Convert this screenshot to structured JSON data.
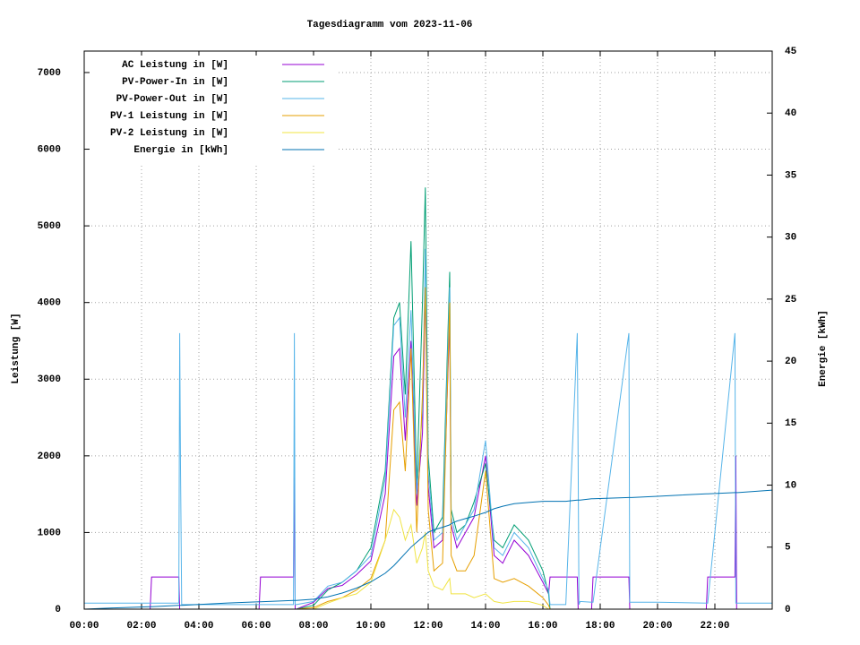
{
  "chart_data": {
    "type": "line",
    "title": "Tagesdiagramm vom 2023-11-06",
    "y_label": "Leistung [W]",
    "y2_label": "Energie [kWh]",
    "xlim": [
      0,
      24
    ],
    "xticks": [
      {
        "value": 0,
        "label": "00:00"
      },
      {
        "value": 2,
        "label": "02:00"
      },
      {
        "value": 4,
        "label": "04:00"
      },
      {
        "value": 6,
        "label": "06:00"
      },
      {
        "value": 8,
        "label": "08:00"
      },
      {
        "value": 10,
        "label": "10:00"
      },
      {
        "value": 12,
        "label": "12:00"
      },
      {
        "value": 14,
        "label": "14:00"
      },
      {
        "value": 16,
        "label": "16:00"
      },
      {
        "value": 18,
        "label": "18:00"
      },
      {
        "value": 20,
        "label": "20:00"
      },
      {
        "value": 22,
        "label": "22:00"
      }
    ],
    "ylim": [
      0,
      7280
    ],
    "yticks": [
      0,
      1000,
      2000,
      3000,
      4000,
      5000,
      6000,
      7000
    ],
    "y2lim": [
      0,
      45
    ],
    "y2ticks": [
      0,
      5,
      10,
      15,
      20,
      25,
      30,
      35,
      40,
      45
    ],
    "grid": true,
    "legend": "top left",
    "x": [
      0,
      1,
      2.3,
      2.35,
      3.3,
      3.33,
      3.36,
      3.4,
      5,
      6.1,
      6.15,
      7.3,
      7.33,
      7.36,
      7.4,
      8,
      8.5,
      9,
      9.5,
      10,
      10.5,
      10.8,
      11,
      11.2,
      11.4,
      11.6,
      11.8,
      11.9,
      12.0,
      12.2,
      12.5,
      12.75,
      12.8,
      13,
      13.3,
      13.6,
      14,
      14.3,
      14.6,
      15,
      15.5,
      16,
      16.2,
      16.25,
      16.8,
      17.2,
      17.23,
      17.26,
      17.3,
      17.7,
      17.75,
      19.0,
      19.03,
      19.06,
      19.1,
      20,
      21.7,
      21.75,
      22.7,
      22.73,
      22.76,
      22.8,
      24
    ],
    "series": [
      {
        "name": "AC Leistung in [W]",
        "color": "#9400d3",
        "values": [
          0,
          0,
          0,
          420,
          420,
          0,
          0,
          0,
          0,
          0,
          420,
          420,
          2000,
          0,
          0,
          90,
          270,
          310,
          450,
          630,
          1500,
          3300,
          3400,
          2200,
          3500,
          1350,
          2300,
          4200,
          1600,
          800,
          900,
          3800,
          1100,
          800,
          1000,
          1200,
          2000,
          700,
          600,
          900,
          700,
          350,
          200,
          420,
          420,
          420,
          0,
          0,
          0,
          0,
          420,
          420,
          0,
          0,
          0,
          0,
          0,
          420,
          420,
          2000,
          0,
          0,
          0
        ]
      },
      {
        "name": "PV-Power-In in [W]",
        "color": "#009e73",
        "values": [
          0,
          0,
          0,
          0,
          0,
          0,
          0,
          0,
          0,
          0,
          0,
          0,
          0,
          0,
          0,
          50,
          250,
          350,
          500,
          800,
          1800,
          3800,
          4000,
          2800,
          4800,
          1600,
          4000,
          5500,
          2000,
          1000,
          1200,
          4400,
          1300,
          1000,
          1100,
          1400,
          1900,
          900,
          800,
          1100,
          900,
          500,
          200,
          0,
          0,
          0,
          0,
          0,
          0,
          0,
          0,
          0,
          0,
          0,
          0,
          0,
          0,
          0,
          0,
          0,
          0,
          0,
          0
        ]
      },
      {
        "name": "PV-Power-Out in [W]",
        "color": "#56b4e9",
        "values": [
          80,
          80,
          80,
          80,
          80,
          3600,
          1850,
          60,
          60,
          60,
          60,
          60,
          3600,
          60,
          60,
          100,
          300,
          350,
          500,
          700,
          1700,
          3700,
          3800,
          2500,
          3900,
          1500,
          2600,
          4700,
          1800,
          900,
          1000,
          4200,
          1200,
          900,
          1100,
          1300,
          2200,
          800,
          700,
          1000,
          800,
          400,
          250,
          60,
          60,
          3600,
          1850,
          60,
          100,
          90,
          90,
          3600,
          90,
          90,
          90,
          90,
          80,
          80,
          3600,
          80,
          80,
          80,
          80
        ]
      },
      {
        "name": "PV-1 Leistung in [W]",
        "color": "#e69f00",
        "values": [
          0,
          0,
          0,
          0,
          0,
          0,
          0,
          0,
          0,
          0,
          0,
          0,
          0,
          0,
          0,
          20,
          100,
          150,
          250,
          400,
          900,
          2600,
          2700,
          1800,
          3400,
          1000,
          2800,
          4200,
          1300,
          500,
          600,
          4000,
          700,
          500,
          500,
          700,
          1800,
          400,
          350,
          400,
          300,
          150,
          50,
          0,
          0,
          0,
          0,
          0,
          0,
          0,
          0,
          0,
          0,
          0,
          0,
          0,
          0,
          0,
          0,
          0,
          0,
          0,
          0
        ]
      },
      {
        "name": "PV-2 Leistung in [W]",
        "color": "#f0e442",
        "values": [
          0,
          0,
          0,
          0,
          0,
          0,
          0,
          0,
          0,
          0,
          0,
          0,
          0,
          0,
          0,
          0,
          80,
          150,
          200,
          350,
          900,
          1300,
          1200,
          900,
          1100,
          600,
          800,
          1000,
          500,
          300,
          250,
          400,
          200,
          200,
          200,
          150,
          200,
          100,
          80,
          100,
          100,
          50,
          0,
          0,
          0,
          0,
          0,
          0,
          0,
          0,
          0,
          0,
          0,
          0,
          0,
          0,
          0,
          0,
          0,
          0,
          0,
          0,
          0
        ]
      },
      {
        "name": "Energie in [kWh]",
        "color": "#0072b2",
        "axis": "y2",
        "values": [
          0,
          0.1,
          0.2,
          0.2,
          0.3,
          0.3,
          0.3,
          0.3,
          0.5,
          0.6,
          0.6,
          0.7,
          0.7,
          0.7,
          0.7,
          0.8,
          1.0,
          1.3,
          1.7,
          2.2,
          2.9,
          3.5,
          4.0,
          4.5,
          5.0,
          5.4,
          5.8,
          6.0,
          6.2,
          6.4,
          6.6,
          6.8,
          6.9,
          7.1,
          7.3,
          7.5,
          7.8,
          8.1,
          8.3,
          8.5,
          8.6,
          8.7,
          8.7,
          8.7,
          8.7,
          8.8,
          8.8,
          8.8,
          8.8,
          8.9,
          8.9,
          9.0,
          9.0,
          9.0,
          9.0,
          9.1,
          9.3,
          9.3,
          9.4,
          9.4,
          9.4,
          9.4,
          9.6
        ]
      }
    ]
  }
}
